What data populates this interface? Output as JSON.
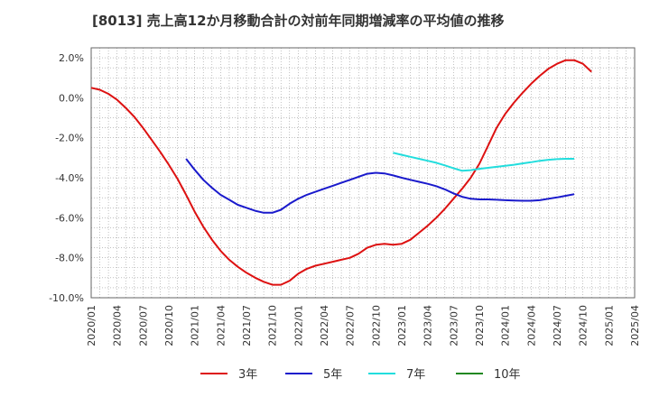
{
  "chart_data": {
    "type": "line",
    "title": "[8013]  売上高12か月移動合計の対前年同期増減率の平均値の推移",
    "xlabel": "",
    "ylabel": "",
    "y_unit": "%",
    "ylim": [
      -10.0,
      2.5
    ],
    "y_ticks": [
      2.0,
      0.0,
      -2.0,
      -4.0,
      -6.0,
      -8.0,
      -10.0
    ],
    "y_tick_labels": [
      "2.0%",
      "0.0%",
      "-2.0%",
      "-4.0%",
      "-6.0%",
      "-8.0%",
      "-10.0%"
    ],
    "x_ticks": [
      "2020/01",
      "2020/04",
      "2020/07",
      "2020/10",
      "2021/01",
      "2021/04",
      "2021/07",
      "2021/10",
      "2022/01",
      "2022/04",
      "2022/07",
      "2022/10",
      "2023/01",
      "2023/04",
      "2023/07",
      "2023/10",
      "2024/01",
      "2024/04",
      "2024/07",
      "2024/10",
      "2025/01",
      "2025/04"
    ],
    "grid": true,
    "legend_position": "bottom",
    "series": [
      {
        "name": "3年",
        "color": "#dd1111",
        "points": [
          [
            "2020/01",
            0.5
          ],
          [
            "2020/02",
            0.4
          ],
          [
            "2020/03",
            0.2
          ],
          [
            "2020/04",
            -0.1
          ],
          [
            "2020/05",
            -0.5
          ],
          [
            "2020/06",
            -0.95
          ],
          [
            "2020/07",
            -1.5
          ],
          [
            "2020/08",
            -2.1
          ],
          [
            "2020/09",
            -2.7
          ],
          [
            "2020/10",
            -3.35
          ],
          [
            "2020/11",
            -4.05
          ],
          [
            "2020/12",
            -4.85
          ],
          [
            "2021/01",
            -5.7
          ],
          [
            "2021/02",
            -6.45
          ],
          [
            "2021/03",
            -7.1
          ],
          [
            "2021/04",
            -7.65
          ],
          [
            "2021/05",
            -8.1
          ],
          [
            "2021/06",
            -8.45
          ],
          [
            "2021/07",
            -8.75
          ],
          [
            "2021/08",
            -9.0
          ],
          [
            "2021/09",
            -9.2
          ],
          [
            "2021/10",
            -9.35
          ],
          [
            "2021/11",
            -9.35
          ],
          [
            "2021/12",
            -9.15
          ],
          [
            "2022/01",
            -8.8
          ],
          [
            "2022/02",
            -8.55
          ],
          [
            "2022/03",
            -8.4
          ],
          [
            "2022/04",
            -8.3
          ],
          [
            "2022/05",
            -8.2
          ],
          [
            "2022/06",
            -8.1
          ],
          [
            "2022/07",
            -8.0
          ],
          [
            "2022/08",
            -7.8
          ],
          [
            "2022/09",
            -7.5
          ],
          [
            "2022/10",
            -7.35
          ],
          [
            "2022/11",
            -7.3
          ],
          [
            "2022/12",
            -7.35
          ],
          [
            "2023/01",
            -7.3
          ],
          [
            "2023/02",
            -7.1
          ],
          [
            "2023/03",
            -6.75
          ],
          [
            "2023/04",
            -6.4
          ],
          [
            "2023/05",
            -6.0
          ],
          [
            "2023/06",
            -5.55
          ],
          [
            "2023/07",
            -5.05
          ],
          [
            "2023/08",
            -4.55
          ],
          [
            "2023/09",
            -4.0
          ],
          [
            "2023/10",
            -3.3
          ],
          [
            "2023/11",
            -2.4
          ],
          [
            "2023/12",
            -1.5
          ],
          [
            "2024/01",
            -0.8
          ],
          [
            "2024/02",
            -0.25
          ],
          [
            "2024/03",
            0.25
          ],
          [
            "2024/04",
            0.7
          ],
          [
            "2024/05",
            1.1
          ],
          [
            "2024/06",
            1.45
          ],
          [
            "2024/07",
            1.7
          ],
          [
            "2024/08",
            1.88
          ],
          [
            "2024/09",
            1.88
          ],
          [
            "2024/10",
            1.7
          ],
          [
            "2024/11",
            1.3
          ]
        ]
      },
      {
        "name": "5年",
        "color": "#1a1acc",
        "points": [
          [
            "2020/12",
            -3.05
          ],
          [
            "2021/01",
            -3.6
          ],
          [
            "2021/02",
            -4.1
          ],
          [
            "2021/03",
            -4.5
          ],
          [
            "2021/04",
            -4.85
          ],
          [
            "2021/05",
            -5.1
          ],
          [
            "2021/06",
            -5.35
          ],
          [
            "2021/07",
            -5.5
          ],
          [
            "2021/08",
            -5.65
          ],
          [
            "2021/09",
            -5.75
          ],
          [
            "2021/10",
            -5.75
          ],
          [
            "2021/11",
            -5.6
          ],
          [
            "2021/12",
            -5.3
          ],
          [
            "2022/01",
            -5.05
          ],
          [
            "2022/02",
            -4.85
          ],
          [
            "2022/03",
            -4.7
          ],
          [
            "2022/04",
            -4.55
          ],
          [
            "2022/05",
            -4.4
          ],
          [
            "2022/06",
            -4.25
          ],
          [
            "2022/07",
            -4.1
          ],
          [
            "2022/08",
            -3.95
          ],
          [
            "2022/09",
            -3.8
          ],
          [
            "2022/10",
            -3.75
          ],
          [
            "2022/11",
            -3.78
          ],
          [
            "2022/12",
            -3.88
          ],
          [
            "2023/01",
            -4.0
          ],
          [
            "2023/02",
            -4.1
          ],
          [
            "2023/03",
            -4.2
          ],
          [
            "2023/04",
            -4.3
          ],
          [
            "2023/05",
            -4.42
          ],
          [
            "2023/06",
            -4.58
          ],
          [
            "2023/07",
            -4.78
          ],
          [
            "2023/08",
            -4.95
          ],
          [
            "2023/09",
            -5.05
          ],
          [
            "2023/10",
            -5.08
          ],
          [
            "2023/11",
            -5.08
          ],
          [
            "2023/12",
            -5.1
          ],
          [
            "2024/01",
            -5.12
          ],
          [
            "2024/02",
            -5.14
          ],
          [
            "2024/03",
            -5.15
          ],
          [
            "2024/04",
            -5.15
          ],
          [
            "2024/05",
            -5.12
          ],
          [
            "2024/06",
            -5.05
          ],
          [
            "2024/07",
            -4.98
          ],
          [
            "2024/08",
            -4.9
          ],
          [
            "2024/09",
            -4.82
          ]
        ]
      },
      {
        "name": "7年",
        "color": "#22dddd",
        "points": [
          [
            "2022/12",
            -2.75
          ],
          [
            "2023/01",
            -2.85
          ],
          [
            "2023/02",
            -2.95
          ],
          [
            "2023/03",
            -3.05
          ],
          [
            "2023/04",
            -3.15
          ],
          [
            "2023/05",
            -3.25
          ],
          [
            "2023/06",
            -3.38
          ],
          [
            "2023/07",
            -3.52
          ],
          [
            "2023/08",
            -3.65
          ],
          [
            "2023/09",
            -3.62
          ],
          [
            "2023/10",
            -3.55
          ],
          [
            "2023/11",
            -3.5
          ],
          [
            "2023/12",
            -3.45
          ],
          [
            "2024/01",
            -3.4
          ],
          [
            "2024/02",
            -3.35
          ],
          [
            "2024/03",
            -3.28
          ],
          [
            "2024/04",
            -3.22
          ],
          [
            "2024/05",
            -3.15
          ],
          [
            "2024/06",
            -3.1
          ],
          [
            "2024/07",
            -3.07
          ],
          [
            "2024/08",
            -3.05
          ],
          [
            "2024/09",
            -3.05
          ]
        ]
      },
      {
        "name": "10年",
        "color": "#228822",
        "points": []
      }
    ]
  }
}
